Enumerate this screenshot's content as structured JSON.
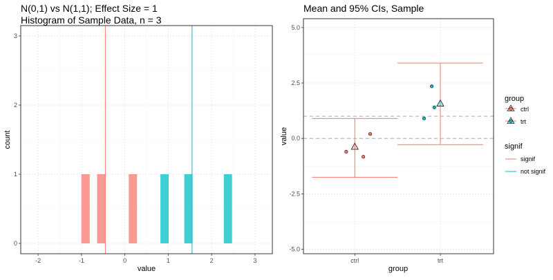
{
  "left_panel": {
    "title_line1": "N(0,1) vs N(1,1); Effect Size = 1",
    "title_line2": "Histogram of Sample Data, n = 3"
  },
  "right_panel": {
    "title": "Mean and 95% CIs, Sample"
  },
  "legend": {
    "group_title": "group",
    "group_items": [
      {
        "label": "ctrl",
        "color": "#F8766D"
      },
      {
        "label": "trt",
        "color": "#00BFC4"
      }
    ],
    "signif_title": "signif",
    "signif_items": [
      {
        "label": "signif",
        "color": "#F8766D"
      },
      {
        "label": "not signif",
        "color": "#00BFC4"
      }
    ]
  },
  "colors": {
    "ctrl": "#F8766D",
    "trt": "#00BFC4",
    "grid": "#ebebeb",
    "panel_border": "#333333",
    "reference_line": "#aaaaaa"
  },
  "chart_data": [
    {
      "type": "histogram",
      "xlabel": "value",
      "ylabel": "count",
      "xlim": [
        -2.4,
        3.4
      ],
      "ylim": [
        -0.15,
        3.15
      ],
      "xticks": [
        -2,
        -1,
        0,
        1,
        2,
        3
      ],
      "yticks": [
        0,
        1,
        2,
        3
      ],
      "bin_width": 0.19,
      "series": [
        {
          "name": "ctrl",
          "color": "#F8766D",
          "bins": [
            {
              "start": -1.0,
              "count": 1
            },
            {
              "start": -0.64,
              "count": 1
            },
            {
              "start": 0.09,
              "count": 1
            }
          ]
        },
        {
          "name": "trt",
          "color": "#00BFC4",
          "bins": [
            {
              "start": 0.82,
              "count": 1
            },
            {
              "start": 1.37,
              "count": 1
            },
            {
              "start": 2.28,
              "count": 1
            }
          ]
        }
      ],
      "vlines": [
        {
          "x": -0.45,
          "color": "#F8766D"
        },
        {
          "x": 1.55,
          "color": "#00BFC4"
        }
      ]
    },
    {
      "type": "scatter",
      "xlabel": "group",
      "ylabel": "value",
      "categories": [
        "ctrl",
        "trt"
      ],
      "ylim": [
        -5.2,
        5.4
      ],
      "yticks": [
        -5.0,
        -2.5,
        0.0,
        2.5,
        5.0
      ],
      "ytick_labels": [
        "-5.0",
        "-2.5",
        "0.0",
        "2.5",
        "5.0"
      ],
      "hlines": [
        0.0,
        1.0
      ],
      "points": [
        {
          "group": "ctrl",
          "offset": -0.1,
          "y": -0.6
        },
        {
          "group": "ctrl",
          "offset": 0.1,
          "y": -0.83
        },
        {
          "group": "ctrl",
          "offset": 0.18,
          "y": 0.2
        },
        {
          "group": "trt",
          "offset": -0.19,
          "y": 0.9
        },
        {
          "group": "trt",
          "offset": -0.1,
          "y": 2.35
        },
        {
          "group": "trt",
          "offset": -0.07,
          "y": 1.4
        }
      ],
      "means": [
        {
          "group": "ctrl",
          "mean": -0.4,
          "ci_low": -1.75,
          "ci_high": 0.9,
          "signif": "signif"
        },
        {
          "group": "trt",
          "mean": 1.55,
          "ci_low": -0.28,
          "ci_high": 3.4,
          "signif": "signif"
        }
      ]
    }
  ]
}
